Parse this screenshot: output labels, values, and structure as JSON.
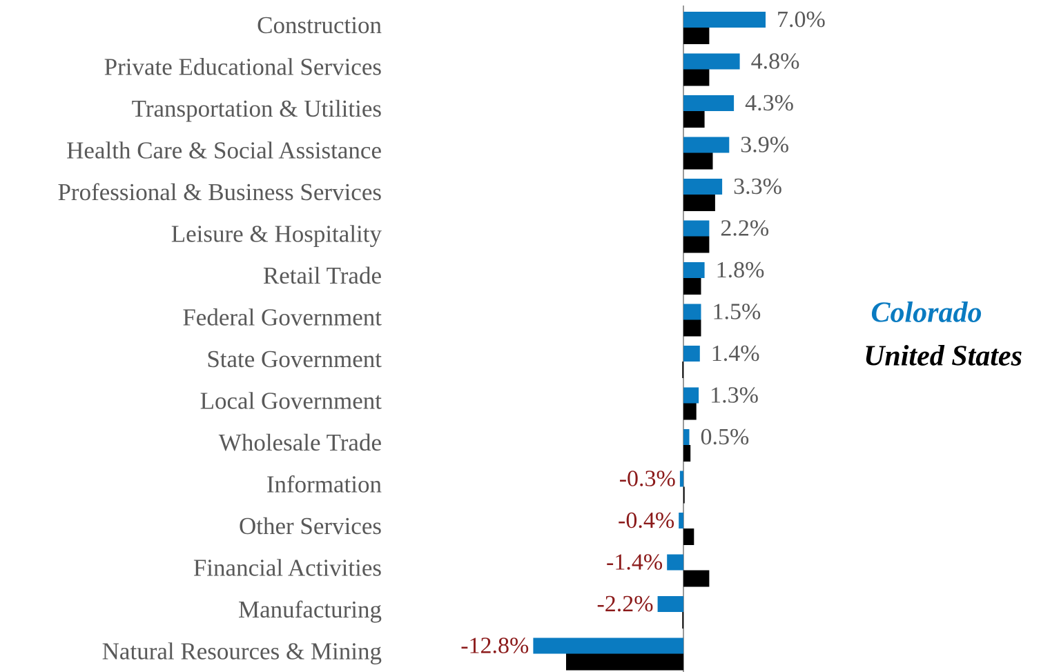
{
  "chart_data": {
    "type": "bar",
    "orientation": "horizontal",
    "categories": [
      "Construction",
      "Private Educational Services",
      "Transportation & Utilities",
      "Health Care & Social Assistance",
      "Professional & Business Services",
      "Leisure & Hospitality",
      "Retail Trade",
      "Federal Government",
      "State Government",
      "Local Government",
      "Wholesale Trade",
      "Information",
      "Other Services",
      "Financial Activities",
      "Manufacturing",
      "Natural Resources & Mining"
    ],
    "series": [
      {
        "name": "Colorado",
        "color": "#0a7bc1",
        "values": [
          7.0,
          4.8,
          4.3,
          3.9,
          3.3,
          2.2,
          1.8,
          1.5,
          1.4,
          1.3,
          0.5,
          -0.3,
          -0.4,
          -1.4,
          -2.2,
          -12.8
        ],
        "value_labels": [
          "7.0%",
          "4.8%",
          "4.3%",
          "3.9%",
          "3.3%",
          "2.2%",
          "1.8%",
          "1.5%",
          "1.4%",
          "1.3%",
          "0.5%",
          "-0.3%",
          "-0.4%",
          "-1.4%",
          "-2.2%",
          "-12.8%"
        ]
      },
      {
        "name": "United States",
        "color": "#000000",
        "values": [
          2.2,
          2.2,
          1.8,
          2.5,
          2.7,
          2.2,
          1.5,
          1.5,
          -0.1,
          1.1,
          0.6,
          0.1,
          0.9,
          2.2,
          -0.1,
          -10.0
        ]
      }
    ],
    "positive_label_color": "#595959",
    "negative_label_color": "#8b1a1a"
  }
}
